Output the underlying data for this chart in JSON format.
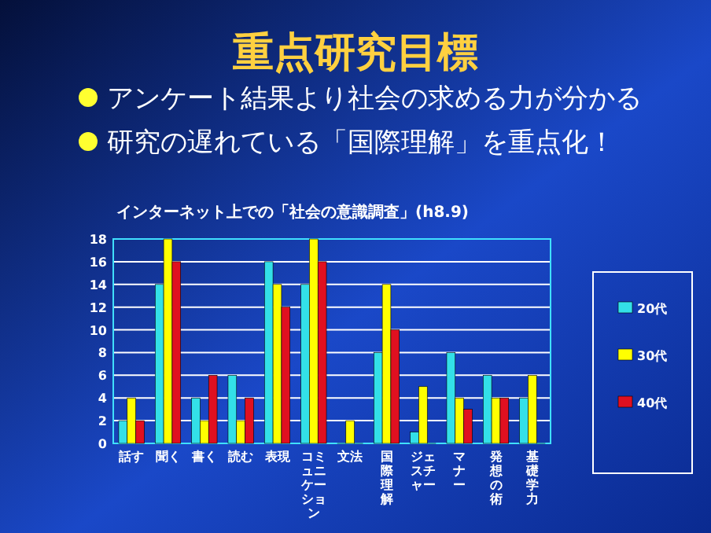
{
  "chart_data": {
    "type": "bar",
    "title": "重点研究目標",
    "subtitle": "インターネット上での「社会の意識調査」(h8.9)",
    "annotations": [
      "アンケート結果より社会の求める力が分かる",
      "研究の遅れている「国際理解」を重点化！"
    ],
    "categories": [
      "話す",
      "聞く",
      "書く",
      "読む",
      "表現",
      "コミュニケーション",
      "文法",
      "国際理解",
      "ジェスチャー",
      "マナー",
      "発想の術",
      "基礎学力"
    ],
    "series": [
      {
        "name": "20代",
        "color": "#33e0e8",
        "values": [
          2,
          14,
          4,
          6,
          16,
          14,
          0,
          8,
          1,
          8,
          6,
          4
        ]
      },
      {
        "name": "30代",
        "color": "#ffff00",
        "values": [
          4,
          18,
          2,
          2,
          14,
          18,
          2,
          14,
          5,
          4,
          4,
          6
        ]
      },
      {
        "name": "40代",
        "color": "#e01020",
        "values": [
          2,
          16,
          6,
          4,
          12,
          16,
          0,
          10,
          0,
          3,
          4,
          0
        ]
      }
    ],
    "ylim": [
      0,
      18
    ],
    "yticks": [
      0,
      2,
      4,
      6,
      8,
      10,
      12,
      14,
      16,
      18
    ],
    "grid": "y",
    "legend": "right"
  }
}
